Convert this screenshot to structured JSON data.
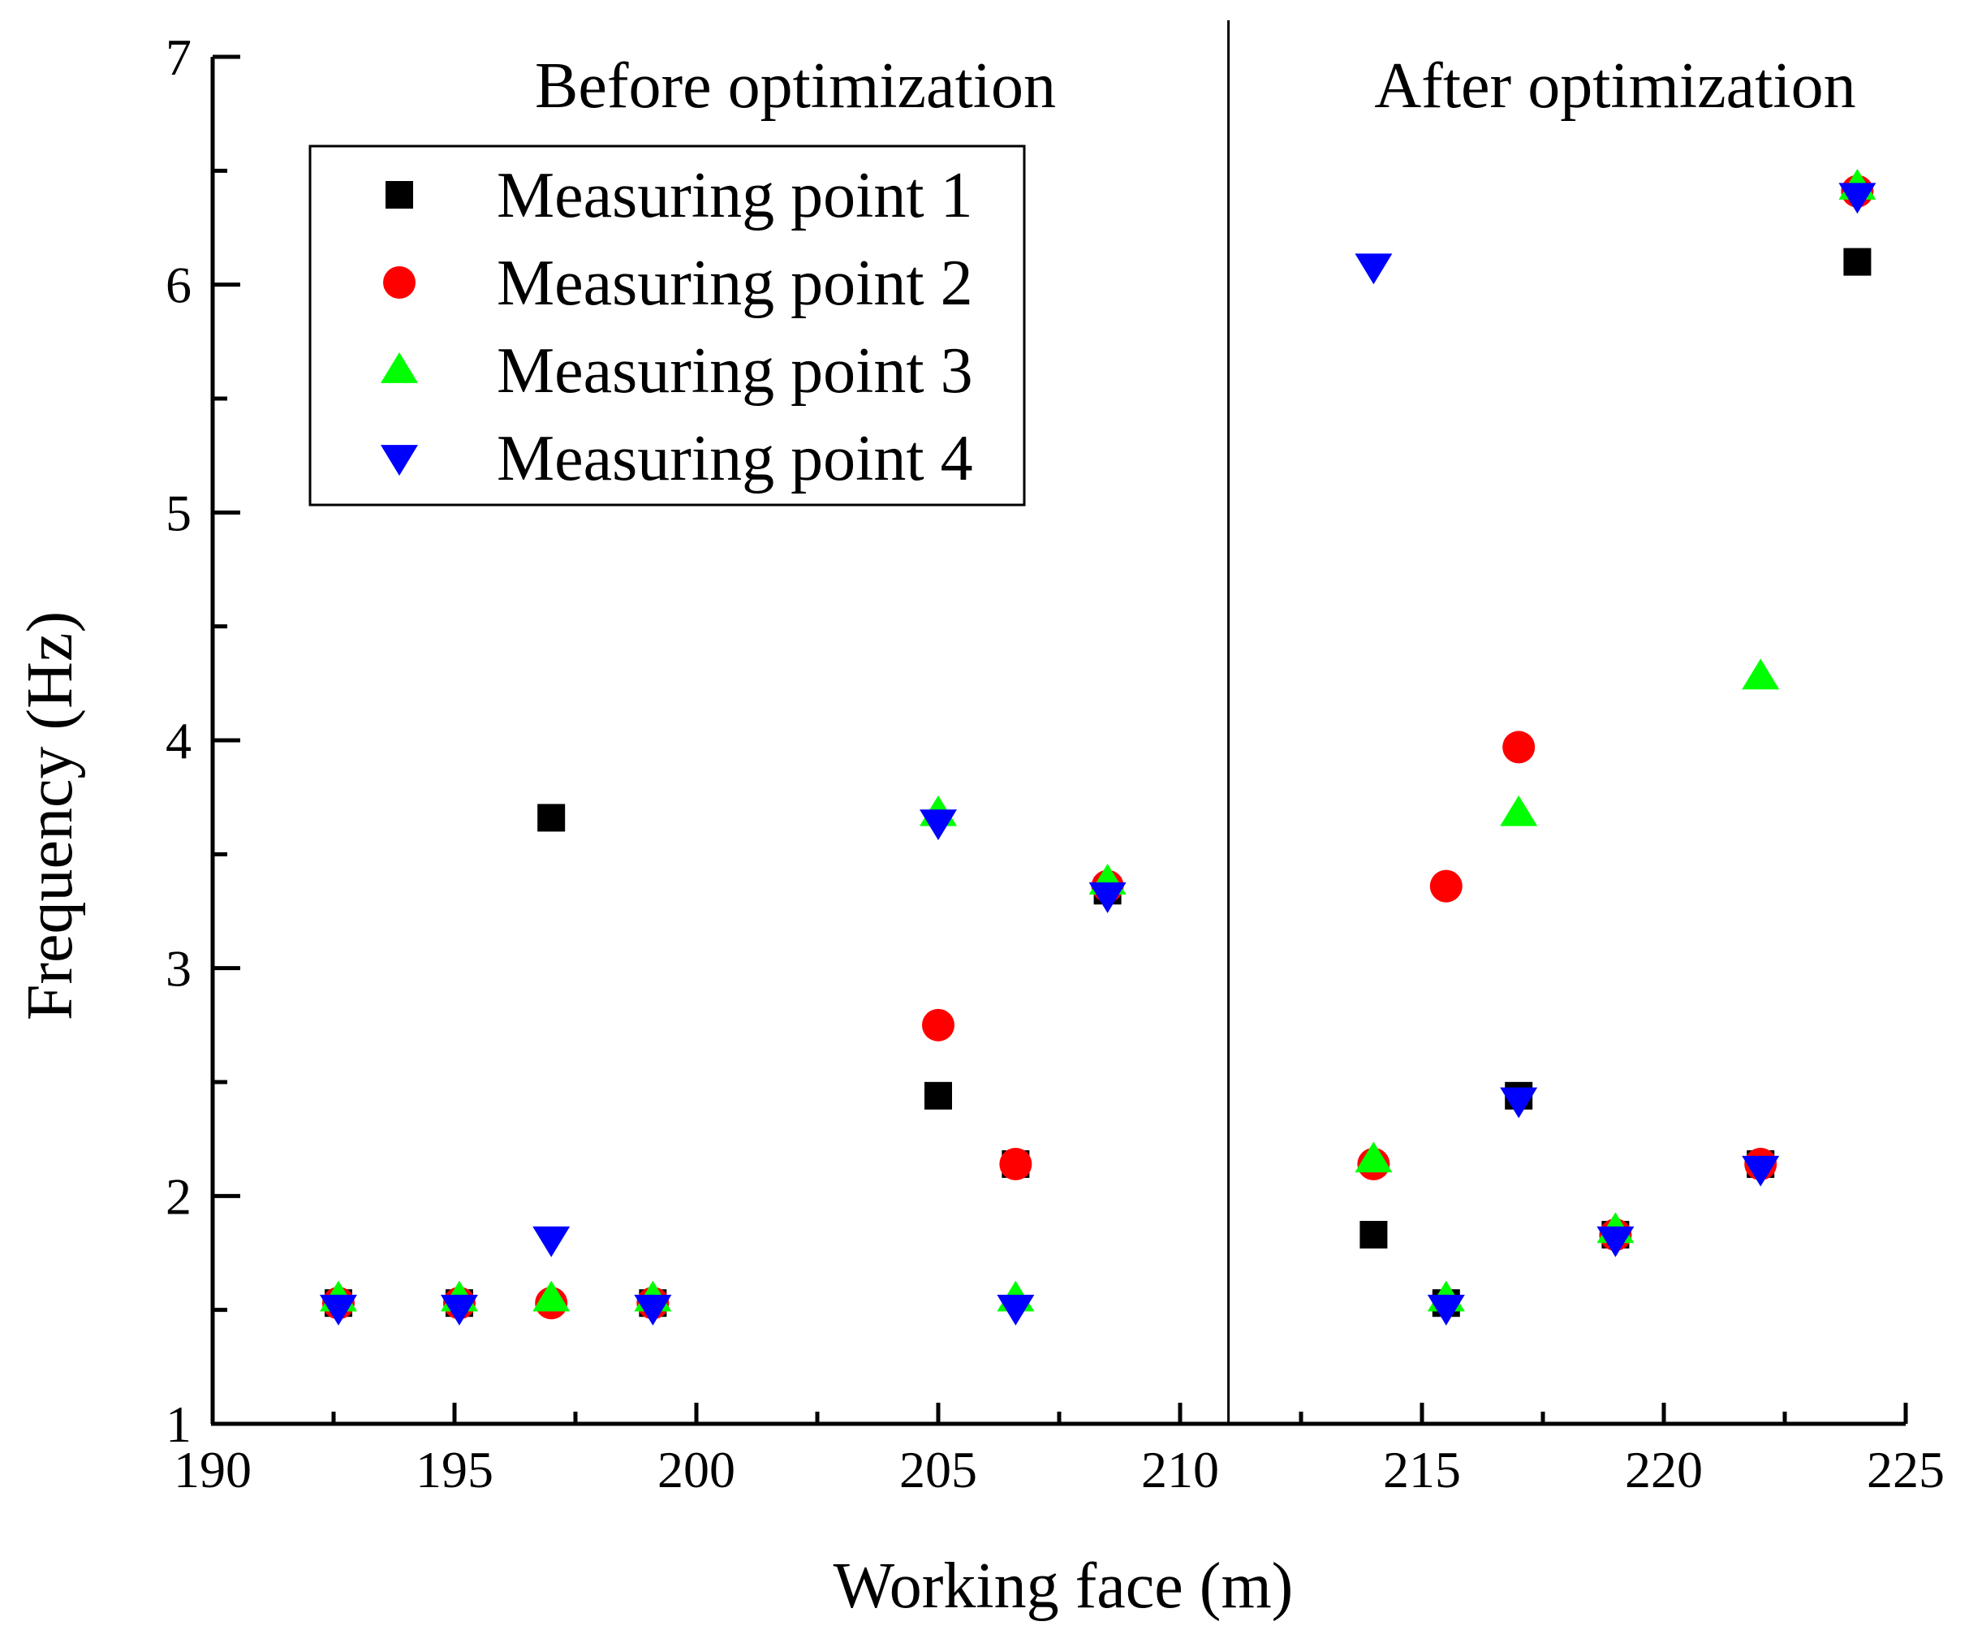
{
  "chart_data": {
    "type": "scatter",
    "xlabel": "Working face (m)",
    "ylabel": "Frequency (Hz)",
    "xlim": [
      190,
      225
    ],
    "ylim": [
      1,
      7
    ],
    "x_ticks": [
      190,
      195,
      200,
      205,
      210,
      215,
      220,
      225
    ],
    "y_ticks": [
      1,
      2,
      3,
      4,
      5,
      6,
      7
    ],
    "x_tick_labels": [
      "190",
      "195",
      "200",
      "205",
      "210",
      "215",
      "220",
      "225"
    ],
    "y_tick_labels": [
      "1",
      "2",
      "3",
      "4",
      "5",
      "6",
      "7"
    ],
    "divider_x": 211,
    "region_labels": {
      "before": "Before optimization",
      "after": "After optimization"
    },
    "legend_position": "top-left",
    "grid": false,
    "series": [
      {
        "name": "Measuring point 1",
        "marker": "square",
        "color": "#000000",
        "points": [
          [
            192.6,
            1.53
          ],
          [
            195.1,
            1.53
          ],
          [
            197.0,
            3.66
          ],
          [
            199.1,
            1.53
          ],
          [
            205.0,
            2.44
          ],
          [
            206.6,
            2.14
          ],
          [
            208.5,
            3.34
          ],
          [
            214.0,
            1.83
          ],
          [
            215.5,
            1.53
          ],
          [
            217.0,
            2.44
          ],
          [
            219.0,
            1.83
          ],
          [
            222.0,
            2.14
          ],
          [
            224.0,
            6.1
          ]
        ]
      },
      {
        "name": "Measuring point 2",
        "marker": "circle",
        "color": "#ff0000",
        "points": [
          [
            192.6,
            1.53
          ],
          [
            195.1,
            1.53
          ],
          [
            197.0,
            1.53
          ],
          [
            199.1,
            1.53
          ],
          [
            205.0,
            2.75
          ],
          [
            206.6,
            2.14
          ],
          [
            208.5,
            3.36
          ],
          [
            214.0,
            2.14
          ],
          [
            215.5,
            3.36
          ],
          [
            217.0,
            3.97
          ],
          [
            219.0,
            1.83
          ],
          [
            222.0,
            2.14
          ],
          [
            224.0,
            6.41
          ]
        ]
      },
      {
        "name": "Measuring point 3",
        "marker": "triangle-up",
        "color": "#00ff00",
        "points": [
          [
            192.6,
            1.55
          ],
          [
            195.1,
            1.55
          ],
          [
            197.0,
            1.55
          ],
          [
            199.1,
            1.55
          ],
          [
            205.0,
            3.68
          ],
          [
            206.6,
            1.55
          ],
          [
            208.5,
            3.38
          ],
          [
            214.0,
            2.16
          ],
          [
            215.5,
            1.55
          ],
          [
            217.0,
            3.68
          ],
          [
            219.0,
            1.85
          ],
          [
            222.0,
            4.28
          ],
          [
            224.0,
            6.43
          ]
        ]
      },
      {
        "name": "Measuring point 4",
        "marker": "triangle-down",
        "color": "#0000ff",
        "points": [
          [
            192.6,
            1.51
          ],
          [
            195.1,
            1.51
          ],
          [
            197.0,
            1.81
          ],
          [
            199.1,
            1.51
          ],
          [
            205.0,
            3.64
          ],
          [
            206.6,
            1.51
          ],
          [
            208.5,
            3.32
          ],
          [
            214.0,
            6.08
          ],
          [
            215.5,
            1.51
          ],
          [
            217.0,
            2.42
          ],
          [
            219.0,
            1.81
          ],
          [
            222.0,
            2.12
          ],
          [
            224.0,
            6.39
          ]
        ]
      }
    ]
  }
}
